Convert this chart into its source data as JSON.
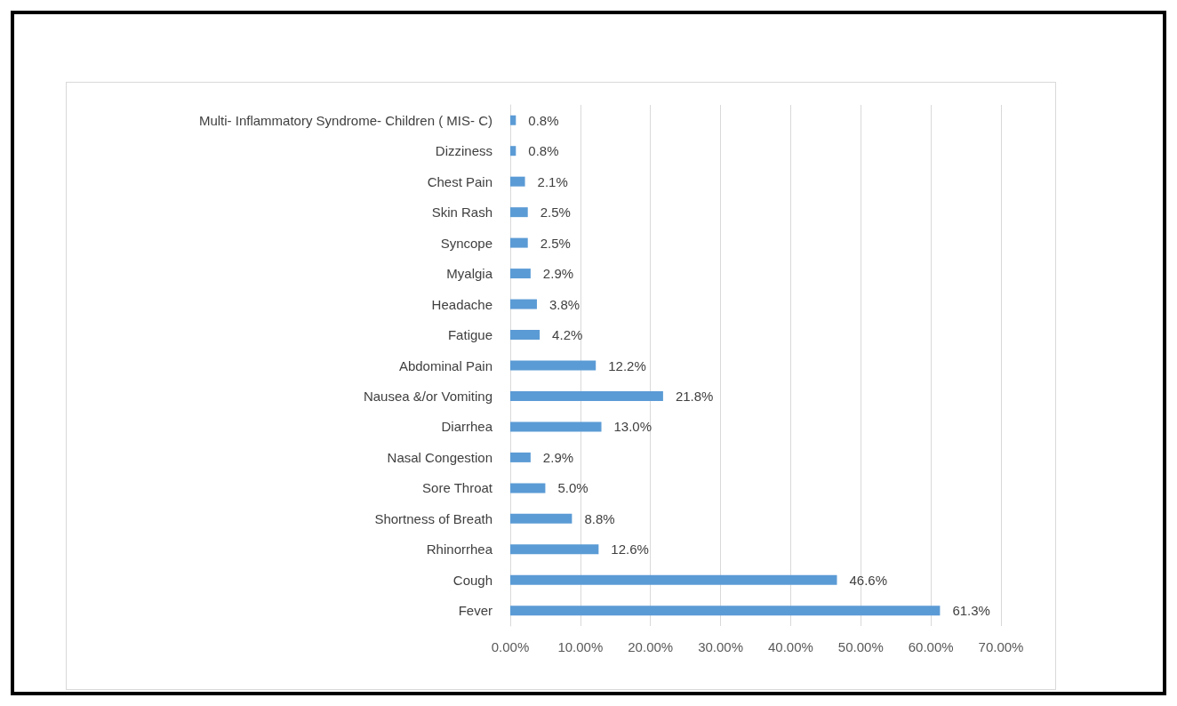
{
  "chart_data": {
    "type": "bar",
    "orientation": "horizontal",
    "categories": [
      "Multi- Inflammatory Syndrome- Children ( MIS- C)",
      "Dizziness",
      "Chest Pain",
      "Skin Rash",
      "Syncope",
      "Myalgia",
      "Headache",
      "Fatigue",
      "Abdominal Pain",
      "Nausea &/or Vomiting",
      "Diarrhea",
      "Nasal Congestion",
      "Sore Throat",
      "Shortness of Breath",
      "Rhinorrhea",
      "Cough",
      "Fever"
    ],
    "values": [
      0.8,
      0.8,
      2.1,
      2.5,
      2.5,
      2.9,
      3.8,
      4.2,
      12.2,
      21.8,
      13.0,
      2.9,
      5.0,
      8.8,
      12.6,
      46.6,
      61.3
    ],
    "value_labels": [
      "0.8%",
      "0.8%",
      "2.1%",
      "2.5%",
      "2.5%",
      "2.9%",
      "3.8%",
      "4.2%",
      "12.2%",
      "21.8%",
      "13.0%",
      "2.9%",
      "5.0%",
      "8.8%",
      "12.6%",
      "46.6%",
      "61.3%"
    ],
    "color": "#5b9bd5",
    "xlim": [
      0,
      70
    ],
    "xticks": [
      {
        "value": 0,
        "label": "0.00%"
      },
      {
        "value": 10,
        "label": "10.00%"
      },
      {
        "value": 20,
        "label": "20.00%"
      },
      {
        "value": 30,
        "label": "30.00%"
      },
      {
        "value": 40,
        "label": "40.00%"
      },
      {
        "value": 50,
        "label": "50.00%"
      },
      {
        "value": 60,
        "label": "60.00%"
      },
      {
        "value": 70,
        "label": "70.00%"
      }
    ],
    "grid": "x"
  }
}
